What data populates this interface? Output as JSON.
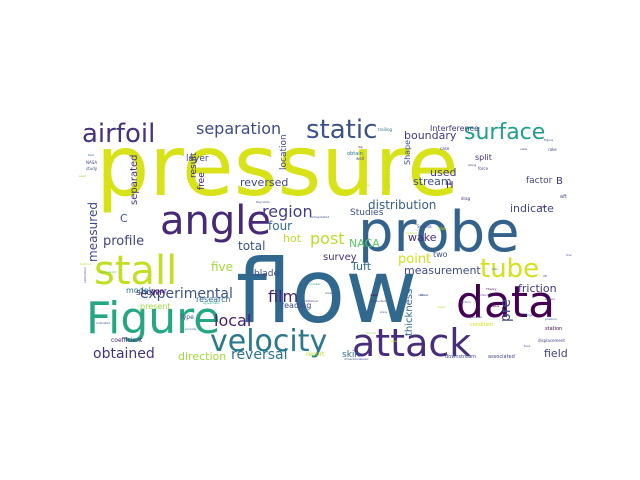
{
  "words": [
    {
      "text": "pressure",
      "color": "#d8e219"
    },
    {
      "text": "flow",
      "color": "#31688e"
    },
    {
      "text": "probe",
      "color": "#33638d"
    },
    {
      "text": "angle",
      "color": "#482878"
    },
    {
      "text": "data",
      "color": "#440154"
    },
    {
      "text": "stall",
      "color": "#c2df23"
    },
    {
      "text": "Figure",
      "color": "#26a784"
    },
    {
      "text": "attack",
      "color": "#472d7b"
    },
    {
      "text": "velocity",
      "color": "#2a788e"
    },
    {
      "text": "airfoil",
      "color": "#46327e"
    },
    {
      "text": "static",
      "color": "#3b528b"
    },
    {
      "text": "surface",
      "color": "#1f9e89"
    },
    {
      "text": "tube",
      "color": "#d5e21a"
    },
    {
      "text": "separation",
      "color": "#3e4a89"
    },
    {
      "text": "region",
      "color": "#433e85"
    },
    {
      "text": "post",
      "color": "#b8de29"
    },
    {
      "text": "local",
      "color": "#481f70"
    },
    {
      "text": "obtained",
      "color": "#46337e"
    },
    {
      "text": "reversal",
      "color": "#2c728e"
    },
    {
      "text": "experimental",
      "color": "#3b528b"
    },
    {
      "text": "film",
      "color": "#482475"
    },
    {
      "text": "measured",
      "color": "#3e4989"
    },
    {
      "text": "profile",
      "color": "#414487"
    },
    {
      "text": "reversed",
      "color": "#3f4788"
    },
    {
      "text": "four",
      "color": "#2e6e8e"
    },
    {
      "text": "five",
      "color": "#a2da37"
    },
    {
      "text": "total",
      "color": "#3a538b"
    },
    {
      "text": "distribution",
      "color": "#355f8d"
    },
    {
      "text": "boundary",
      "color": "#443983"
    },
    {
      "text": "stream",
      "color": "#3c508b"
    },
    {
      "text": "wake",
      "color": "#472c7a"
    },
    {
      "text": "point",
      "color": "#d0e11c"
    },
    {
      "text": "measurement",
      "color": "#3e4c8a"
    },
    {
      "text": "friction",
      "color": "#453882"
    },
    {
      "text": "pre",
      "color": "#3f4889"
    },
    {
      "text": "field",
      "color": "#414487"
    },
    {
      "text": "Tuft",
      "color": "#2d708e"
    },
    {
      "text": "NACA",
      "color": "#5cc863"
    },
    {
      "text": "used",
      "color": "#443b84"
    },
    {
      "text": "indicate",
      "color": "#3f4889"
    },
    {
      "text": "factor",
      "color": "#404688"
    },
    {
      "text": "direction",
      "color": "#9fda3a"
    },
    {
      "text": "skin",
      "color": "#2f6c8e"
    },
    {
      "text": "separated",
      "color": "#46327e"
    },
    {
      "text": "shown",
      "color": "#481c6e"
    },
    {
      "text": "hot",
      "color": "#bddf26"
    },
    {
      "text": "survey",
      "color": "#46307e"
    },
    {
      "text": "blade",
      "color": "#3f4889"
    },
    {
      "text": "thickness",
      "color": "#31688e"
    },
    {
      "text": "reading",
      "color": "#3e4a89"
    },
    {
      "text": "research",
      "color": "#2e6d8e"
    },
    {
      "text": "model",
      "color": "#2a778e"
    },
    {
      "text": "coefficient",
      "color": "#482475"
    },
    {
      "text": "result",
      "color": "#46307e"
    },
    {
      "text": "free",
      "color": "#482173"
    },
    {
      "text": "layer",
      "color": "#3f4788"
    },
    {
      "text": "near",
      "color": "#482576"
    },
    {
      "text": "Studies",
      "color": "#3c4f8a"
    },
    {
      "text": "two",
      "color": "#3b528b"
    },
    {
      "text": "location",
      "color": "#3f4788"
    },
    {
      "text": "Interference",
      "color": "#453781"
    },
    {
      "text": "Shape",
      "color": "#3b528b"
    },
    {
      "text": "split",
      "color": "#472f7d"
    },
    {
      "text": "present",
      "color": "#9dd93b"
    },
    {
      "text": "Type",
      "color": "#3b528b"
    },
    {
      "text": "report",
      "color": "#b5de2b"
    },
    {
      "text": "downstream",
      "color": "#3e4a89"
    },
    {
      "text": "associated",
      "color": "#404588"
    },
    {
      "text": "H",
      "color": "#482677"
    },
    {
      "text": "B",
      "color": "#46327e"
    },
    {
      "text": "C",
      "color": "#3b528b"
    },
    {
      "text": "obtain",
      "color": "#2a778e"
    },
    {
      "text": "Difference",
      "color": "#c0df25"
    },
    {
      "text": "station",
      "color": "#440154"
    },
    {
      "text": "condition",
      "color": "#d5e21a"
    },
    {
      "text": "displacement",
      "color": "#3f4889"
    },
    {
      "text": "agreement",
      "color": "#2db27d"
    },
    {
      "text": "aft",
      "color": "#404688"
    },
    {
      "text": "plot",
      "color": "#c8e020"
    },
    {
      "text": "Speeds",
      "color": "#3b528b"
    },
    {
      "text": "force",
      "color": "#3e4c8a"
    },
    {
      "text": "drag",
      "color": "#472a7a"
    },
    {
      "text": "case",
      "color": "#414487"
    },
    {
      "text": "well",
      "color": "#3b528b"
    },
    {
      "text": "trailing",
      "color": "#2c738e"
    },
    {
      "text": "Reynolds",
      "color": "#3b528b"
    },
    {
      "text": "extrapolated",
      "color": "#3d4d8a"
    },
    {
      "text": "conducted",
      "color": "#453882"
    },
    {
      "text": "dimensionalized",
      "color": "#3d4e8a"
    },
    {
      "text": "additional",
      "color": "#3f4788"
    },
    {
      "text": "provide",
      "color": "#2c718e"
    },
    {
      "text": "number",
      "color": "#2fb47c"
    },
    {
      "text": "dip",
      "color": "#440154"
    },
    {
      "text": "position",
      "color": "#3b528b"
    },
    {
      "text": "study",
      "color": "#3b528b"
    },
    {
      "text": "test",
      "color": "#2c728e"
    },
    {
      "text": "NASA",
      "color": "#414487"
    },
    {
      "text": "edge",
      "color": "#cde11d"
    },
    {
      "text": "seen",
      "color": "#9bd93c"
    },
    {
      "text": "Aeroelastic",
      "color": "#5ec962"
    },
    {
      "text": "turbine",
      "color": "#b5de2b"
    },
    {
      "text": "indicated",
      "color": "#3b528b"
    },
    {
      "text": "occurs",
      "color": "#7ad151"
    },
    {
      "text": "along",
      "color": "#46327e"
    },
    {
      "text": "value",
      "color": "#440154"
    },
    {
      "text": "rake",
      "color": "#3e4989"
    },
    {
      "text": "also",
      "color": "#2a788e"
    },
    {
      "text": "section",
      "color": "#3b528b"
    },
    {
      "text": "method",
      "color": "#c0df25"
    },
    {
      "text": "area",
      "color": "#3b528b"
    },
    {
      "text": "sensor",
      "color": "#46327e"
    },
    {
      "text": "fine",
      "color": "#440154"
    },
    {
      "text": "line",
      "color": "#3b528b"
    },
    {
      "text": "face",
      "color": "#3b528b"
    },
    {
      "text": "calibration",
      "color": "#414487"
    },
    {
      "text": "Figure",
      "color": "#3e4a89"
    },
    {
      "text": "ratio",
      "color": "#3b528b"
    },
    {
      "text": "mean",
      "color": "#b5de2b"
    },
    {
      "text": "zone",
      "color": "#3b528b"
    },
    {
      "text": "lower",
      "color": "#440154"
    },
    {
      "text": "chord",
      "color": "#414487"
    },
    {
      "text": "Theory",
      "color": "#440154"
    },
    {
      "text": "lift",
      "color": "#3b528b"
    },
    {
      "text": "spanwise",
      "color": "#46327e"
    },
    {
      "text": "view",
      "color": "#414487"
    },
    {
      "text": "large",
      "color": "#2a788e"
    },
    {
      "text": "show",
      "color": "#d8e219"
    },
    {
      "text": "Small",
      "color": "#3b528b"
    }
  ]
}
